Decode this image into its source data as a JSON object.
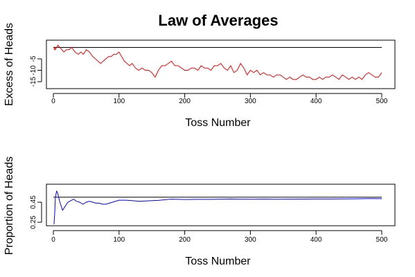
{
  "title": "Law of Averages",
  "colors": {
    "excess_line": "#ff0000",
    "proportion_line": "#0000ff",
    "reference_line": "#000000",
    "frame": "#000000"
  },
  "chart_data": [
    {
      "type": "line",
      "xlabel": "Toss Number",
      "ylabel": "Excess of Heads",
      "xlim": [
        0,
        500
      ],
      "ylim": [
        -16,
        1
      ],
      "x_ticks": [
        "0",
        "100",
        "200",
        "300",
        "400",
        "500"
      ],
      "y_ticks": [
        "-15",
        "-10",
        "-5"
      ],
      "reference_line": 0,
      "series": [
        {
          "x": [
            1,
            2,
            3,
            5,
            7,
            10,
            13,
            16,
            20,
            24,
            28,
            33,
            38,
            42,
            46,
            50,
            55,
            60,
            64,
            68,
            72,
            76,
            80,
            84,
            88,
            92,
            96,
            100,
            104,
            108,
            112,
            116,
            120,
            125,
            130,
            135,
            140,
            145,
            150,
            155,
            160,
            165,
            170,
            175,
            180,
            185,
            190,
            195,
            200,
            205,
            210,
            215,
            220,
            225,
            230,
            235,
            240,
            245,
            250,
            255,
            260,
            265,
            270,
            275,
            280,
            285,
            290,
            295,
            300,
            305,
            310,
            315,
            320,
            325,
            330,
            335,
            340,
            345,
            350,
            355,
            360,
            365,
            370,
            375,
            380,
            385,
            390,
            395,
            400,
            405,
            410,
            415,
            420,
            425,
            430,
            435,
            440,
            445,
            450,
            455,
            460,
            465,
            470,
            475,
            480,
            485,
            490,
            495,
            500
          ],
          "values": [
            -1,
            0,
            -1,
            0,
            1,
            0,
            -1,
            -2,
            -1,
            -1,
            0,
            -2,
            -3,
            -2,
            -3,
            -1,
            -2,
            -4,
            -5,
            -6,
            -7,
            -6,
            -5,
            -4,
            -4,
            -3,
            -3,
            -2,
            -4,
            -6,
            -7,
            -8,
            -7,
            -9,
            -10,
            -9,
            -10,
            -10,
            -11,
            -13,
            -10,
            -8,
            -8,
            -7,
            -6,
            -8,
            -8,
            -9,
            -10,
            -10,
            -9,
            -9,
            -10,
            -8,
            -9,
            -9,
            -10,
            -8,
            -8,
            -7,
            -9,
            -10,
            -8,
            -11,
            -10,
            -7,
            -9,
            -12,
            -10,
            -11,
            -10,
            -12,
            -11,
            -12,
            -12,
            -13,
            -12,
            -12,
            -13,
            -14,
            -13,
            -14,
            -14,
            -13,
            -12,
            -13,
            -13,
            -14,
            -14,
            -13,
            -14,
            -13,
            -13,
            -12,
            -13,
            -14,
            -12,
            -13,
            -14,
            -13,
            -14,
            -13,
            -14,
            -12,
            -11,
            -12,
            -13,
            -13,
            -11
          ]
        }
      ]
    },
    {
      "type": "line",
      "xlabel": "Toss Number",
      "ylabel": "Proportion of Heads",
      "xlim": [
        0,
        500
      ],
      "ylim": [
        0.2,
        0.55
      ],
      "x_ticks": [
        "0",
        "100",
        "200",
        "300",
        "400",
        "500"
      ],
      "y_ticks": [
        "0.25",
        "0.45"
      ],
      "reference_line": 0.5,
      "series": [
        {
          "x": [
            1,
            2,
            3,
            4,
            5,
            6,
            7,
            8,
            10,
            12,
            14,
            16,
            18,
            20,
            22,
            25,
            28,
            31,
            35,
            40,
            45,
            50,
            55,
            60,
            65,
            70,
            75,
            80,
            90,
            100,
            110,
            120,
            130,
            140,
            150,
            160,
            170,
            180,
            190,
            200,
            220,
            240,
            260,
            270,
            280,
            300,
            320,
            340,
            360,
            380,
            400,
            420,
            440,
            460,
            480,
            500
          ],
          "values": [
            0.23,
            0.33,
            0.48,
            0.53,
            0.56,
            0.55,
            0.53,
            0.5,
            0.45,
            0.41,
            0.37,
            0.39,
            0.41,
            0.43,
            0.45,
            0.46,
            0.47,
            0.48,
            0.46,
            0.45,
            0.43,
            0.45,
            0.46,
            0.45,
            0.44,
            0.44,
            0.43,
            0.43,
            0.45,
            0.47,
            0.47,
            0.465,
            0.46,
            0.462,
            0.465,
            0.468,
            0.475,
            0.48,
            0.478,
            0.477,
            0.478,
            0.478,
            0.48,
            0.482,
            0.48,
            0.479,
            0.481,
            0.479,
            0.48,
            0.481,
            0.482,
            0.482,
            0.483,
            0.484,
            0.486,
            0.485
          ]
        }
      ]
    }
  ]
}
